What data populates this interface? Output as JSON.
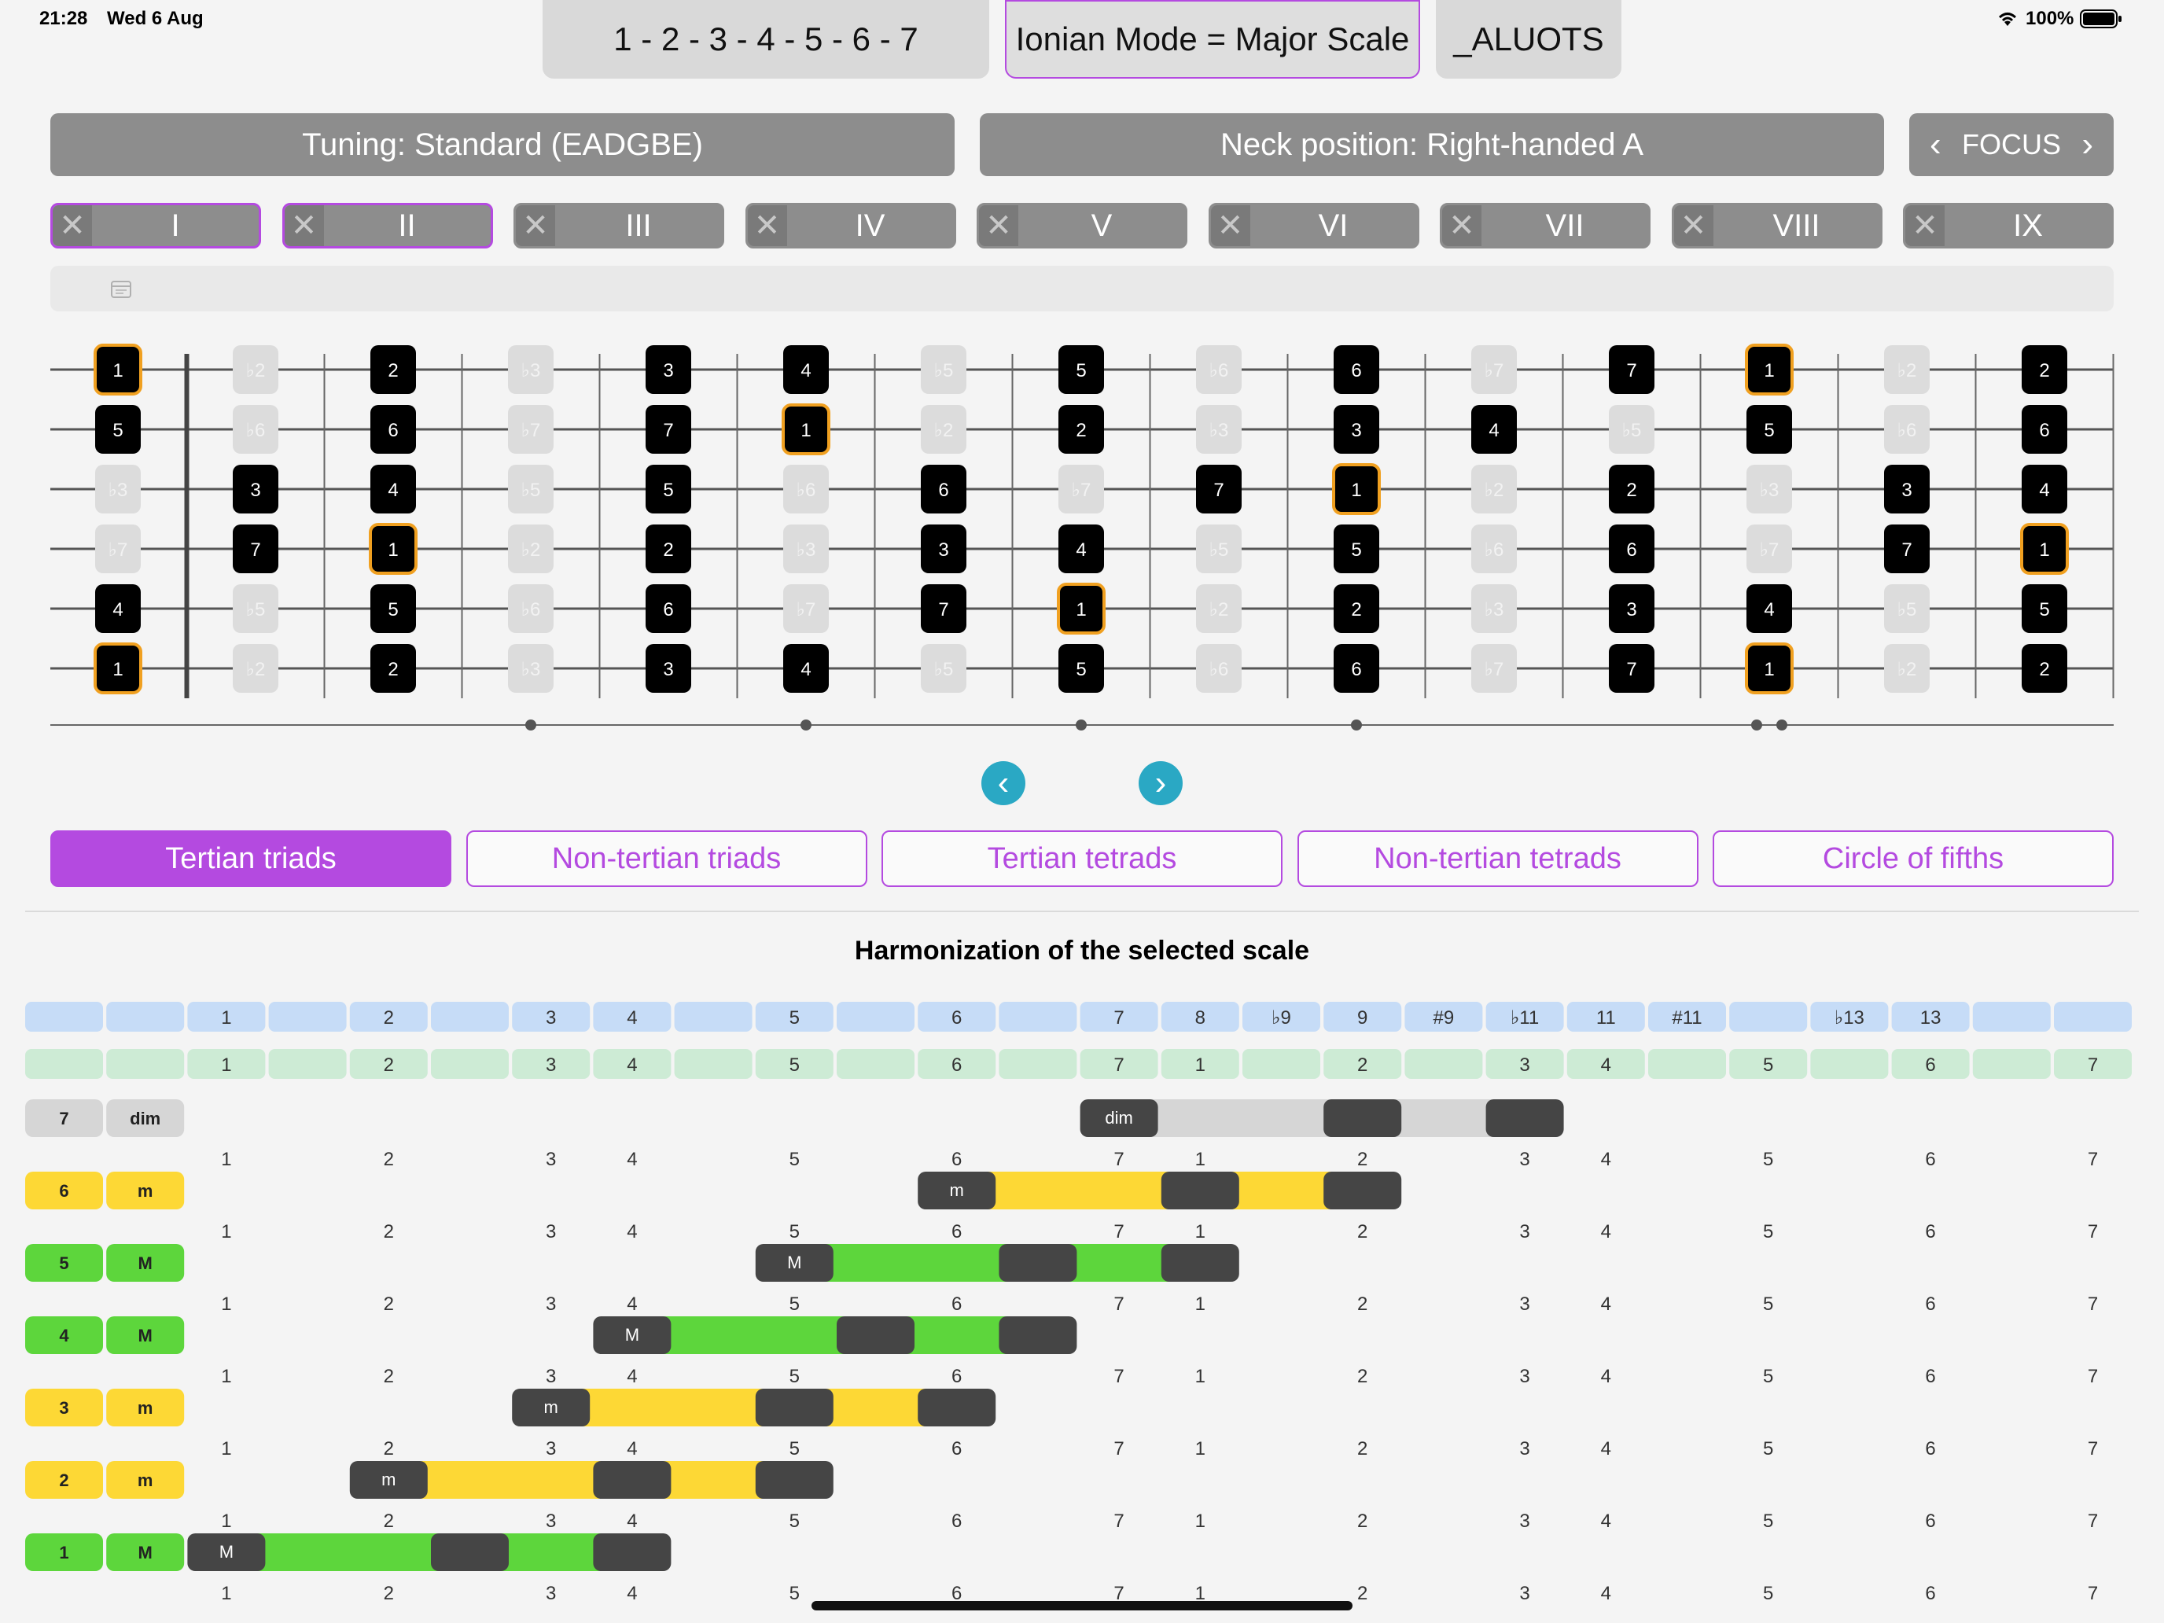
{
  "status": {
    "time": "21:28",
    "date": "Wed 6 Aug",
    "battery": "100%"
  },
  "top": {
    "formula": "1 - 2 - 3 - 4 - 5 - 6 - 7",
    "mode": "Ionian Mode = Major Scale",
    "third": "_ALUOTS"
  },
  "controls": {
    "tuning": "Tuning: Standard (EADGBE)",
    "neck": "Neck position: Right-handed A",
    "focus": "FOCUS"
  },
  "positions": [
    {
      "label": "I",
      "selected": true
    },
    {
      "label": "II",
      "selected": true
    },
    {
      "label": "III",
      "selected": false
    },
    {
      "label": "IV",
      "selected": false
    },
    {
      "label": "V",
      "selected": false
    },
    {
      "label": "VI",
      "selected": false
    },
    {
      "label": "VII",
      "selected": false
    },
    {
      "label": "VIII",
      "selected": false
    },
    {
      "label": "IX",
      "selected": false
    }
  ],
  "fretboard": {
    "strings": [
      [
        "1",
        "b2",
        "2",
        "b3",
        "3",
        "4",
        "b5",
        "5",
        "b6",
        "6",
        "b7",
        "7",
        "1",
        "b2",
        "2"
      ],
      [
        "5",
        "b6",
        "6",
        "b7",
        "7",
        "1",
        "b2",
        "2",
        "b3",
        "3",
        "4",
        "b5",
        "5",
        "b6",
        "6"
      ],
      [
        "b3",
        "3",
        "4",
        "b5",
        "5",
        "b6",
        "6",
        "b7",
        "7",
        "1",
        "b2",
        "2",
        "b3",
        "3",
        "4"
      ],
      [
        "b7",
        "7",
        "1",
        "b2",
        "2",
        "b3",
        "3",
        "4",
        "b5",
        "5",
        "b6",
        "6",
        "b7",
        "7",
        "1"
      ],
      [
        "4",
        "b5",
        "5",
        "b6",
        "6",
        "b7",
        "7",
        "1",
        "b2",
        "2",
        "b3",
        "3",
        "4",
        "b5",
        "5"
      ],
      [
        "1",
        "b2",
        "2",
        "b3",
        "3",
        "4",
        "b5",
        "5",
        "b6",
        "6",
        "b7",
        "7",
        "1",
        "b2",
        "2"
      ]
    ],
    "inlay_frets": [
      3,
      5,
      7,
      9
    ],
    "double_inlay_fret": 12
  },
  "tabs": [
    {
      "label": "Tertian triads",
      "active": true
    },
    {
      "label": "Non-tertian triads",
      "active": false
    },
    {
      "label": "Tertian tetrads",
      "active": false
    },
    {
      "label": "Non-tertian tetrads",
      "active": false
    },
    {
      "label": "Circle of fifths",
      "active": false
    }
  ],
  "harmonization": {
    "title": "Harmonization of the selected scale",
    "interval_row": [
      "",
      "",
      "1",
      "",
      "2",
      "",
      "3",
      "4",
      "",
      "5",
      "",
      "6",
      "",
      "7",
      "8",
      "♭9",
      "9",
      "#9",
      "♭11",
      "11",
      "#11",
      "",
      "♭13",
      "13",
      "",
      ""
    ],
    "degree_row": [
      "",
      "",
      "1",
      "",
      "2",
      "",
      "3",
      "4",
      "",
      "5",
      "",
      "6",
      "",
      "7",
      "1",
      "",
      "2",
      "",
      "3",
      "4",
      "",
      "5",
      "",
      "6",
      "",
      "7"
    ],
    "scale_row": [
      "",
      "",
      "1",
      "",
      "2",
      "",
      "3",
      "4",
      "",
      "5",
      "",
      "6",
      "",
      "7",
      "1",
      "",
      "2",
      "",
      "3",
      "4",
      "",
      "5",
      "",
      "6",
      "",
      "7"
    ],
    "chords": [
      {
        "degree": "7",
        "quality": "dim",
        "start": 13,
        "type": "dim"
      },
      {
        "degree": "6",
        "quality": "m",
        "start": 11,
        "type": "minor"
      },
      {
        "degree": "5",
        "quality": "M",
        "start": 9,
        "type": "major"
      },
      {
        "degree": "4",
        "quality": "M",
        "start": 7,
        "type": "major"
      },
      {
        "degree": "3",
        "quality": "m",
        "start": 6,
        "type": "minor"
      },
      {
        "degree": "2",
        "quality": "m",
        "start": 4,
        "type": "minor"
      },
      {
        "degree": "1",
        "quality": "M",
        "start": 2,
        "type": "major"
      }
    ],
    "colors": {
      "major": "#5dd63c",
      "minor": "#fdd835",
      "dim": "#d6d6d6",
      "note": "#454545",
      "interval_row": "#c6dcf7",
      "degree_row": "#cdebd5"
    }
  },
  "colors": {
    "accent": "#b44ae0",
    "nav_arrow": "#2aa8c4"
  }
}
